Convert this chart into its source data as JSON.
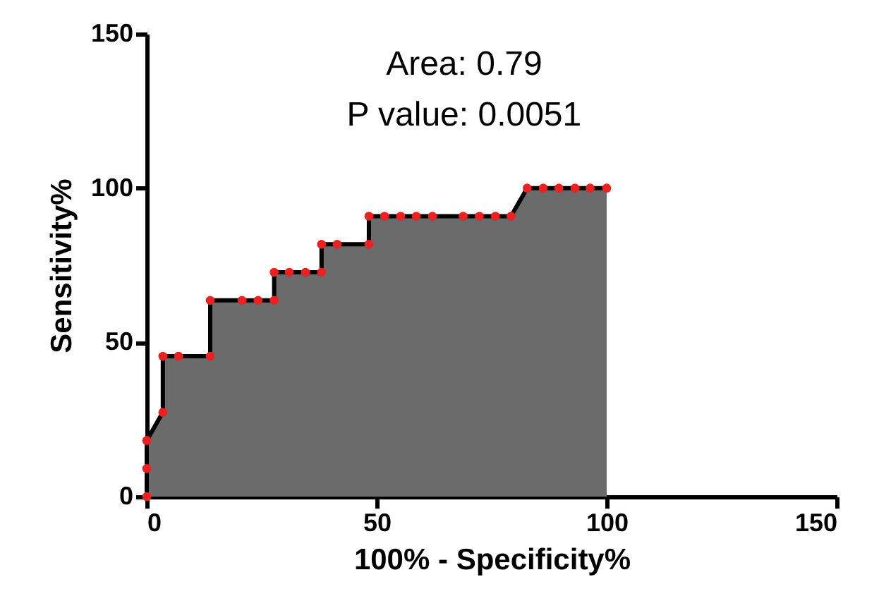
{
  "chart_data": {
    "type": "area",
    "xlabel": "100% - Specificity%",
    "ylabel": "Sensitivity%",
    "x": [
      0,
      0,
      0,
      3.5,
      3.5,
      6.9,
      13.8,
      13.8,
      20.7,
      24.2,
      27.7,
      27.7,
      31.0,
      34.5,
      38.0,
      38.0,
      41.4,
      48.3,
      48.3,
      51.7,
      55.2,
      58.6,
      62.1,
      68.8,
      72.3,
      75.8,
      79.2,
      82.7,
      86.2,
      89.6,
      93.1,
      96.4,
      100
    ],
    "series": [
      {
        "color": "#6b6b6b",
        "values": [
          0,
          9.1,
          18.2,
          27.3,
          45.5,
          45.5,
          45.5,
          63.6,
          63.6,
          63.6,
          63.6,
          72.7,
          72.7,
          72.7,
          72.7,
          81.8,
          81.8,
          81.8,
          90.9,
          90.9,
          90.9,
          90.9,
          90.9,
          90.9,
          90.9,
          90.9,
          90.9,
          100,
          100,
          100,
          100,
          100,
          100
        ]
      }
    ],
    "xlim": [
      0,
      150
    ],
    "xticks": [
      0,
      50,
      100,
      150
    ],
    "ylim": [
      0,
      150
    ],
    "yticks": [
      0,
      50,
      100,
      150
    ],
    "marker": "circle",
    "annotations": [
      "Area: 0.79",
      "P value: 0.0051"
    ]
  }
}
